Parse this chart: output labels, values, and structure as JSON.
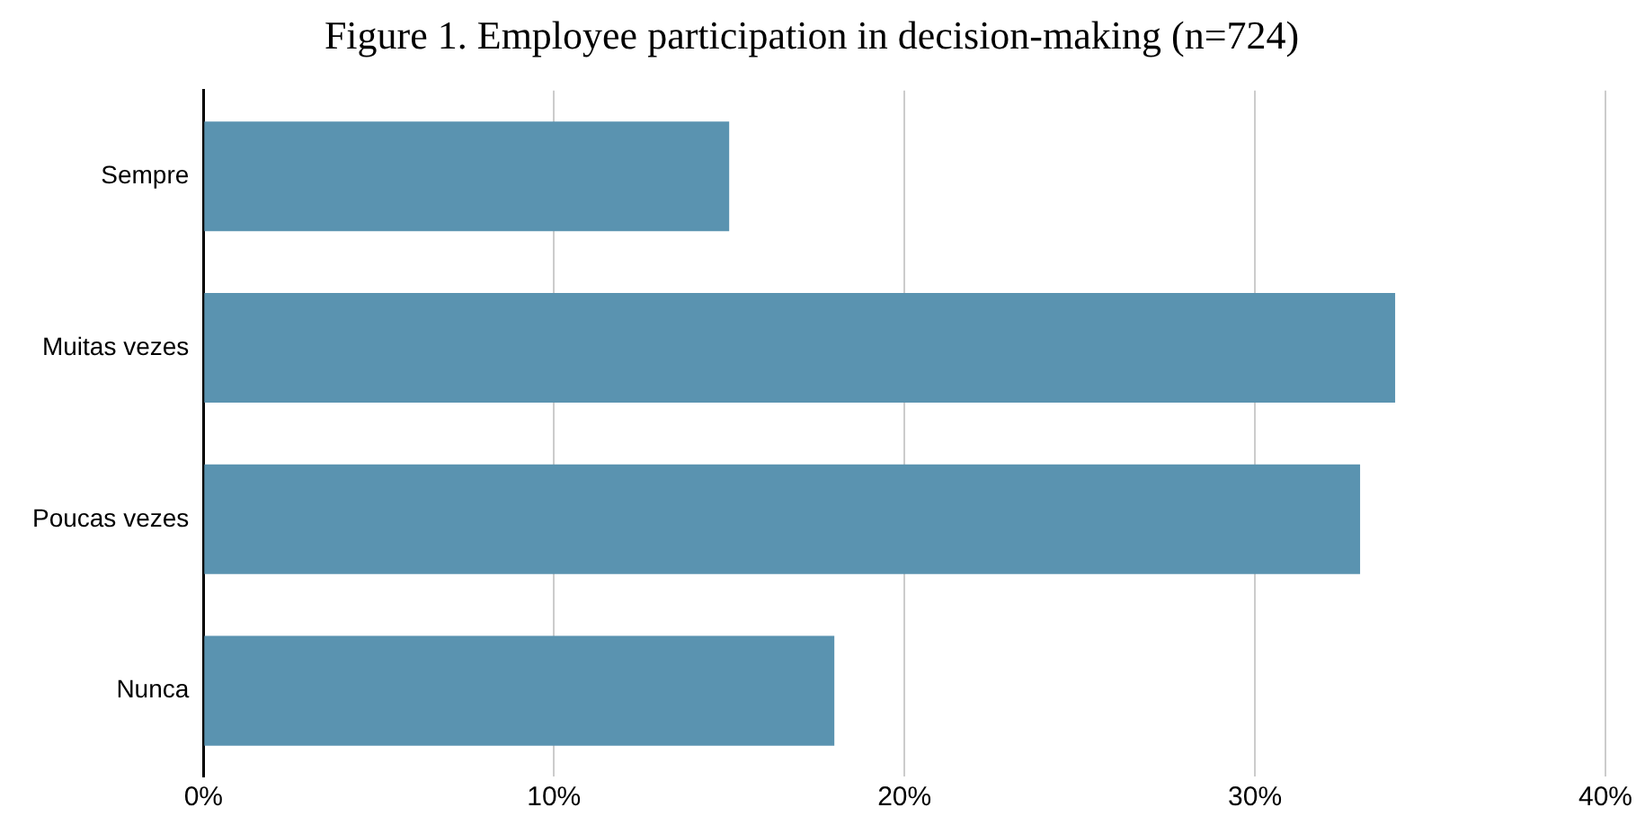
{
  "chart_data": {
    "type": "bar",
    "orientation": "horizontal",
    "title": "Figure 1. Employee participation in decision-making (n=724)",
    "categories": [
      "Sempre",
      "Muitas vezes",
      "Poucas vezes",
      "Nunca"
    ],
    "values": [
      15,
      34,
      33,
      18
    ],
    "color": "#5a93b0",
    "xlim": [
      0,
      40
    ],
    "xticks": [
      {
        "value": 0,
        "label": "0%"
      },
      {
        "value": 10,
        "label": "10%"
      },
      {
        "value": 20,
        "label": "20%"
      },
      {
        "value": 30,
        "label": "30%"
      },
      {
        "value": 40,
        "label": "40%"
      }
    ],
    "grid": "x",
    "legend": false
  }
}
